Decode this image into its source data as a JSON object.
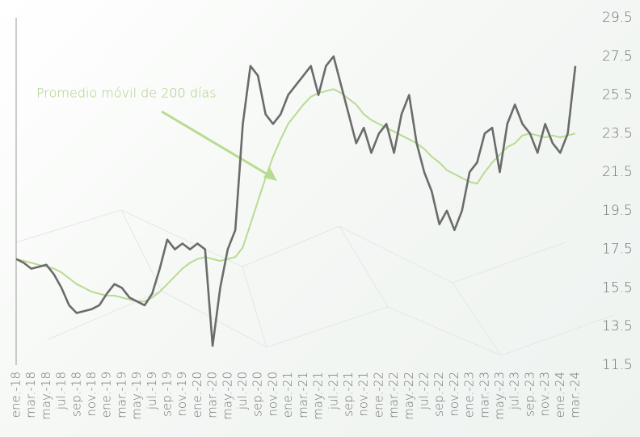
{
  "chart_data": {
    "type": "line",
    "annotation": "Promedio móvil de 200 días",
    "categories": [
      "ene.-18",
      null,
      "mar.-18",
      null,
      "may.-18",
      null,
      "jul.-18",
      null,
      "sep.-18",
      null,
      "nov.-18",
      null,
      "ene.-19",
      null,
      "mar.-19",
      null,
      "may.-19",
      null,
      "jul.-19",
      null,
      "sep.-19",
      null,
      "nov.-19",
      null,
      "ene.-20",
      null,
      "mar.-20",
      null,
      "may.-20",
      null,
      "jul.-20",
      null,
      "sep.-20",
      null,
      "nov.-20",
      null,
      "ene.-21",
      null,
      "mar.-21",
      null,
      "may.-21",
      null,
      "jul.-21",
      null,
      "sep.-21",
      null,
      "nov.-21",
      null,
      "ene.-22",
      null,
      "mar.-22",
      null,
      "may.-22",
      null,
      "jul.-22",
      null,
      "sep.-22",
      null,
      "nov.-22",
      null,
      "ene.-23",
      null,
      "mar.-23",
      null,
      "may.-23",
      null,
      "jul.-23",
      null,
      "sep.-23",
      null,
      "nov.-23",
      null,
      "ene.-24",
      null,
      "mar.-24"
    ],
    "series": [
      {
        "color": "#6b6b6b",
        "values": [
          17.0,
          16.8,
          16.5,
          16.6,
          16.7,
          16.2,
          15.5,
          14.6,
          14.2,
          14.3,
          14.4,
          14.6,
          15.2,
          15.7,
          15.5,
          15.0,
          14.8,
          14.6,
          15.2,
          16.5,
          18.0,
          17.5,
          17.8,
          17.5,
          17.8,
          17.5,
          12.5,
          15.5,
          17.5,
          18.5,
          24.0,
          27.0,
          26.5,
          24.5,
          24.0,
          24.5,
          25.5,
          26.0,
          26.5,
          27.0,
          25.5,
          27.0,
          27.5,
          26.0,
          24.5,
          23.0,
          23.8,
          22.5,
          23.5,
          24.0,
          22.5,
          24.5,
          25.5,
          23.0,
          21.5,
          20.5,
          18.8,
          19.5,
          18.5,
          19.5,
          21.5,
          22.0,
          23.5,
          23.8,
          21.5,
          24.0,
          25.0,
          24.0,
          23.5,
          22.5,
          24.0,
          23.0,
          22.5,
          23.5,
          27.0
        ]
      },
      {
        "name": "Promedio móvil de 200 días",
        "color": "#b9db91",
        "values": [
          17.0,
          16.9,
          16.8,
          16.7,
          16.6,
          16.5,
          16.3,
          16.0,
          15.7,
          15.5,
          15.3,
          15.2,
          15.1,
          15.1,
          15.0,
          14.9,
          14.8,
          14.8,
          15.0,
          15.3,
          15.7,
          16.1,
          16.5,
          16.8,
          17.0,
          17.1,
          17.0,
          16.9,
          17.0,
          17.1,
          17.6,
          18.8,
          20.0,
          21.2,
          22.3,
          23.2,
          24.0,
          24.5,
          25.0,
          25.4,
          25.6,
          25.7,
          25.8,
          25.6,
          25.3,
          25.0,
          24.5,
          24.2,
          24.0,
          23.8,
          23.6,
          23.4,
          23.2,
          23.0,
          22.7,
          22.3,
          22.0,
          21.6,
          21.4,
          21.2,
          21.0,
          20.9,
          21.5,
          22.0,
          22.4,
          22.8,
          23.0,
          23.4,
          23.5,
          23.4,
          23.3,
          23.4,
          23.3,
          23.4,
          23.5
        ]
      }
    ],
    "ylim": [
      11.5,
      29.5
    ],
    "yticks": [
      11.5,
      13.5,
      15.5,
      17.5,
      19.5,
      21.5,
      23.5,
      25.5,
      27.5,
      29.5
    ]
  }
}
